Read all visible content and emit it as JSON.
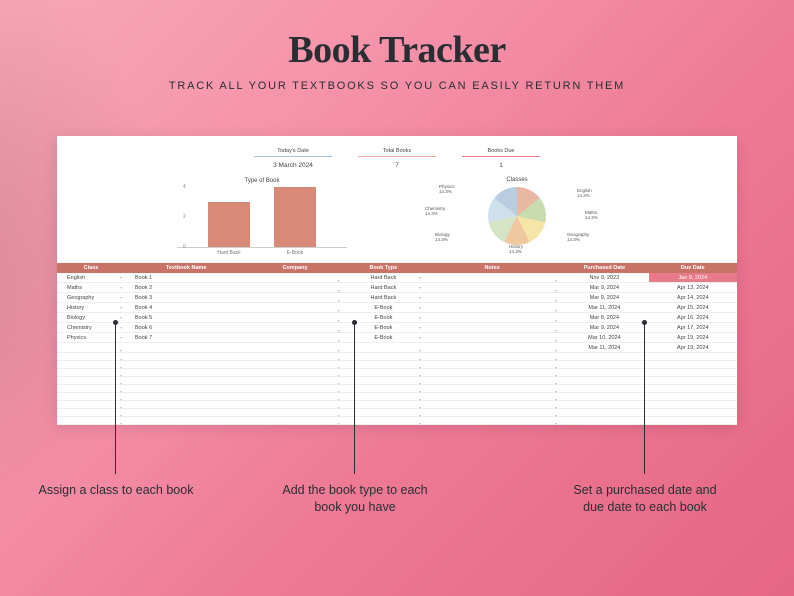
{
  "header": {
    "title": "Book Tracker",
    "subtitle": "TRACK ALL YOUR TEXTBOOKS SO YOU CAN EASILY RETURN THEM"
  },
  "stats": [
    {
      "label": "Today's Date",
      "value": "3 March 2024",
      "accent": "#9fc4dd"
    },
    {
      "label": "Total Books",
      "value": "7",
      "accent": "#e8a896"
    },
    {
      "label": "Books Due",
      "value": "1",
      "accent": "#e87b8a"
    }
  ],
  "bar_chart": {
    "title": "Type of Book",
    "categories": [
      "Hard Back",
      "E-Book"
    ],
    "values": [
      3,
      4
    ],
    "bar_color": "#d88978",
    "ylim_max": 4,
    "yticks": [
      0,
      2,
      4
    ]
  },
  "pie_chart": {
    "title": "Classes",
    "slices": [
      {
        "label": "English",
        "pct": "14.3%",
        "color": "#e9b8a5"
      },
      {
        "label": "Maths",
        "pct": "14.3%",
        "color": "#c9dcb0"
      },
      {
        "label": "Geography",
        "pct": "14.3%",
        "color": "#f5e6a8"
      },
      {
        "label": "History",
        "pct": "14.3%",
        "color": "#f0c8a0"
      },
      {
        "label": "Biology",
        "pct": "14.3%",
        "color": "#d4e4c4"
      },
      {
        "label": "Chemistry",
        "pct": "14.3%",
        "color": "#cfe0ed"
      },
      {
        "label": "Physics",
        "pct": "14.3%",
        "color": "#b8cde0"
      }
    ]
  },
  "table": {
    "columns": [
      "Class",
      "Textbook Name",
      "Company",
      "Book Type",
      "Notes",
      "Purchased Date",
      "Due Date"
    ],
    "col_widths": [
      "10%",
      "18%",
      "14%",
      "12%",
      "20%",
      "13%",
      "13%"
    ],
    "header_bg": "#c97368",
    "rows": [
      {
        "class": "English",
        "name": "Book 1",
        "company": "",
        "type": "Hard Back",
        "notes": "",
        "purchased": "Nov 9, 2023",
        "due": "Jan 9, 2024",
        "due_highlight": true
      },
      {
        "class": "Maths",
        "name": "Book 2",
        "company": "",
        "type": "Hard Back",
        "notes": "",
        "purchased": "Mar 9, 2024",
        "due": "Apr 13, 2024",
        "due_highlight": false
      },
      {
        "class": "Geography",
        "name": "Book 3",
        "company": "",
        "type": "Hard Back",
        "notes": "",
        "purchased": "Mar 9, 2024",
        "due": "Apr 14, 2024",
        "due_highlight": false
      },
      {
        "class": "History",
        "name": "Book 4",
        "company": "",
        "type": "E-Book",
        "notes": "",
        "purchased": "Mar 11, 2024",
        "due": "Apr 15, 2024",
        "due_highlight": false
      },
      {
        "class": "Biology",
        "name": "Book 5",
        "company": "",
        "type": "E-Book",
        "notes": "",
        "purchased": "Mar 8, 2024",
        "due": "Apr 16, 2024",
        "due_highlight": false
      },
      {
        "class": "Chemistry",
        "name": "Book 6",
        "company": "",
        "type": "E-Book",
        "notes": "",
        "purchased": "Mar 9, 2024",
        "due": "Apr 17, 2024",
        "due_highlight": false
      },
      {
        "class": "Physics",
        "name": "Book 7",
        "company": "",
        "type": "E-Book",
        "notes": "",
        "purchased": "Mar 10, 2024",
        "due": "Apr 19, 2024",
        "due_highlight": false
      },
      {
        "class": "",
        "name": "",
        "company": "",
        "type": "",
        "notes": "",
        "purchased": "Mar 11, 2024",
        "due": "Apr 19, 2024",
        "due_highlight": false
      }
    ],
    "empty_rows": 9
  },
  "callouts": [
    {
      "text": "Assign a class to each book"
    },
    {
      "text": "Add the book type to each book you have"
    },
    {
      "text": "Set a purchased date and due date to each book"
    }
  ]
}
